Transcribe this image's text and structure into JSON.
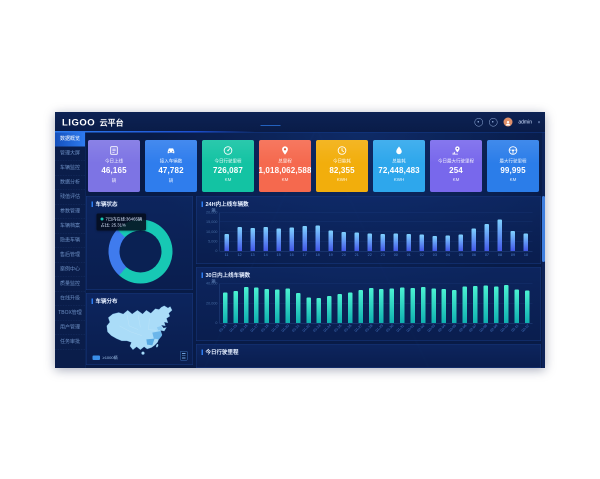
{
  "header": {
    "logo": "LIGOO",
    "platform_title": "云平台",
    "username": "admin",
    "caret": "▾"
  },
  "sidebar": {
    "items": [
      {
        "label": "数据概览",
        "active": true
      },
      {
        "label": "管理大屏",
        "active": false
      },
      {
        "label": "车辆监控",
        "active": false
      },
      {
        "label": "数据分析",
        "active": false
      },
      {
        "label": "残值评估",
        "active": false
      },
      {
        "label": "参数管理",
        "active": false
      },
      {
        "label": "车辆档案",
        "active": false
      },
      {
        "label": "隐患车辆",
        "active": false
      },
      {
        "label": "售后管理",
        "active": false
      },
      {
        "label": "案例中心",
        "active": false
      },
      {
        "label": "质量监控",
        "active": false
      },
      {
        "label": "在线升级",
        "active": false
      },
      {
        "label": "TBOX管理",
        "active": false
      },
      {
        "label": "用户管理",
        "active": false
      },
      {
        "label": "任务审批",
        "active": false
      }
    ]
  },
  "stat_cards": [
    {
      "icon": "clipboard-icon",
      "label": "今日上线",
      "value": "46,165",
      "unit": "辆",
      "color": "#7d74e4"
    },
    {
      "icon": "car-icon",
      "label": "接入车辆数",
      "value": "47,782",
      "unit": "辆",
      "color": "#2f7ded"
    },
    {
      "icon": "gauge-icon",
      "label": "今日行驶里程",
      "value": "726,087",
      "unit": "KM",
      "color": "#13c3a3"
    },
    {
      "icon": "location-pin-icon",
      "label": "总里程",
      "value": "1,018,062,588",
      "unit": "KM",
      "color": "#f5694e"
    },
    {
      "icon": "clock-icon",
      "label": "今日能耗",
      "value": "82,355",
      "unit": "KWH",
      "color": "#f2ae0c"
    },
    {
      "icon": "water-drop-icon",
      "label": "总能耗",
      "value": "72,448,483",
      "unit": "KWH",
      "color": "#2ea7ec"
    },
    {
      "icon": "route-pin-icon",
      "label": "今日最大行驶里程",
      "value": "254",
      "unit": "KM",
      "color": "#7868ec"
    },
    {
      "icon": "steering-wheel-icon",
      "label": "最大行驶里程",
      "value": "99,995",
      "unit": "KM",
      "color": "#2b7de9"
    }
  ],
  "panels": {
    "vehicle_status": {
      "title": "车辆状态",
      "tooltip_line1": "7日内在线:36465辆",
      "tooltip_line2": "占比: 25.31%"
    },
    "chart_24h": {
      "title": "24H内上线车辆数",
      "unit": "辆"
    },
    "vehicle_distribution": {
      "title": "车辆分布",
      "legend_label": "≥1000辆",
      "legend_color": "#3a8ee8"
    },
    "chart_30d": {
      "title": "30日内上线车辆数",
      "unit": "辆"
    },
    "today_mileage": {
      "title": "今日行驶里程"
    }
  },
  "chart_data": [
    {
      "type": "pie",
      "title": "车辆状态",
      "slices": [
        {
          "label": "7日内在线",
          "value": 25.31,
          "color": "#3f7bee"
        },
        {
          "label": "其他车辆",
          "value": 74.69,
          "color": "#17c8b4"
        }
      ],
      "annotation": "7日内在线:36465辆 占比: 25.31%"
    },
    {
      "type": "bar",
      "title": "24H内上线车辆数",
      "ylabel": "辆",
      "ylim": [
        0,
        20000
      ],
      "yticks": [
        0,
        5000,
        10000,
        15000,
        20000
      ],
      "bar_color_top": "#7fd2ff",
      "bar_color_bottom": "#4257e8",
      "categories": [
        "11",
        "12",
        "13",
        "14",
        "15",
        "16",
        "17",
        "18",
        "19",
        "20",
        "21",
        "22",
        "23",
        "00",
        "01",
        "02",
        "03",
        "04",
        "05",
        "06",
        "07",
        "08",
        "09",
        "10"
      ],
      "values": [
        8800,
        12600,
        12000,
        12400,
        11600,
        12100,
        13000,
        13200,
        10600,
        10000,
        9600,
        9200,
        8900,
        9100,
        8800,
        8500,
        7700,
        8000,
        8600,
        11800,
        14000,
        16400,
        10300,
        9100
      ]
    },
    {
      "type": "bar",
      "title": "30日内上线车辆数",
      "ylabel": "辆",
      "ylim": [
        0,
        40000
      ],
      "yticks": [
        0,
        20000,
        40000
      ],
      "bar_color_top": "#4bf2d2",
      "bar_color_bottom": "#0fb0b0",
      "categories": [
        "01-14",
        "01-15",
        "01-16",
        "01-17",
        "01-18",
        "01-19",
        "01-20",
        "01-21",
        "01-22",
        "01-23",
        "01-24",
        "01-25",
        "01-26",
        "01-27",
        "01-28",
        "01-29",
        "01-30",
        "01-31",
        "02-01",
        "02-02",
        "02-03",
        "02-04",
        "02-05",
        "02-06",
        "02-07",
        "02-08",
        "02-09",
        "02-10",
        "02-11",
        "02-12"
      ],
      "values": [
        31000,
        32500,
        36500,
        36000,
        34500,
        34000,
        35000,
        30500,
        26000,
        25500,
        27500,
        29500,
        31000,
        33500,
        35500,
        34500,
        35000,
        36000,
        35500,
        36500,
        35000,
        34500,
        33500,
        37000,
        37500,
        38000,
        37000,
        38500,
        34000,
        33000
      ]
    }
  ]
}
